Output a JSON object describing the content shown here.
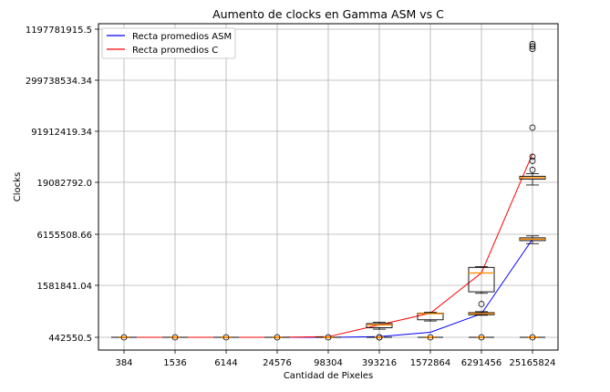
{
  "chart_data": {
    "type": "line",
    "title": "Aumento de clocks en Gamma ASM vs C",
    "xlabel": "Cantidad de Pixeles",
    "ylabel": "Clocks",
    "categories": [
      "384",
      "1536",
      "6144",
      "24576",
      "98304",
      "393216",
      "1572864",
      "6291456",
      "25165824"
    ],
    "y_ticks": [
      "442550.5",
      "1581841.04",
      "6155508.66",
      "19082792.0",
      "91912419.34",
      "299738534.34",
      "1197781915.5"
    ],
    "grid": true,
    "legend_position": "upper-left",
    "series": [
      {
        "name": "Recta promedios ASM",
        "color": "#0000ff",
        "values": [
          442550.5,
          442550.5,
          442550.5,
          442550.5,
          442550.5,
          450000,
          500000,
          790000,
          5400000
        ]
      },
      {
        "name": "Recta promedios C",
        "color": "#ff0000",
        "values": [
          442550.5,
          442550.5,
          442550.5,
          442550.5,
          450000,
          600000,
          800000,
          2200000,
          46000000
        ]
      }
    ],
    "boxplots": {
      "asm": [
        {
          "category": "6291456",
          "q1": 770000,
          "median": 790000,
          "q3": 810000,
          "whisker_low": 760000,
          "whisker_high": 830000,
          "outliers": [
            1000000
          ]
        },
        {
          "category": "25165824",
          "q1": 5200000,
          "median": 5400000,
          "q3": 5600000,
          "whisker_low": 4800000,
          "whisker_high": 5900000,
          "outliers": []
        }
      ],
      "c": [
        {
          "category": "393216",
          "q1": 560000,
          "median": 600000,
          "q3": 620000,
          "whisker_low": 540000,
          "whisker_high": 640000,
          "outliers": [
            442550.5
          ]
        },
        {
          "category": "1572864",
          "q1": 680000,
          "median": 790000,
          "q3": 800000,
          "whisker_low": 660000,
          "whisker_high": 820000,
          "outliers": []
        },
        {
          "category": "6291456",
          "q1": 1350000,
          "median": 2200000,
          "q3": 2550000,
          "whisker_low": 1300000,
          "whisker_high": 2600000,
          "outliers": []
        },
        {
          "category": "25165824",
          "q1": 21000000,
          "median": 22000000,
          "q3": 23000000,
          "whisker_low": 18000000,
          "whisker_high": 25000000,
          "outliers": [
            28000000,
            37000000,
            42000000,
            100000000,
            700000000,
            750000000,
            800000000
          ]
        }
      ]
    }
  }
}
